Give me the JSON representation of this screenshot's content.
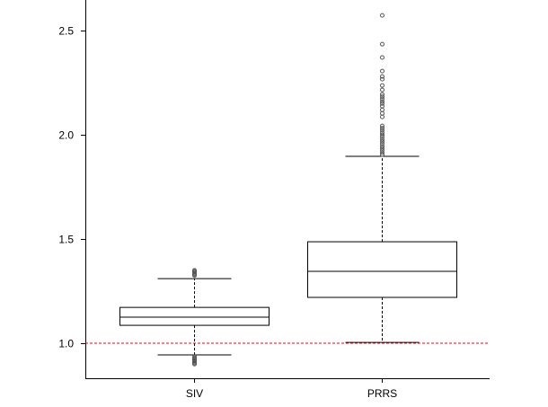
{
  "chart_data": {
    "type": "box",
    "title": "",
    "xlabel": "",
    "ylabel": "",
    "ylim": [
      0.832,
      2.647
    ],
    "yticks": [
      1.0,
      1.5,
      2.0,
      2.5
    ],
    "ytick_labels": [
      "1.0",
      "1.5",
      "2.0",
      "2.5"
    ],
    "reference_line": {
      "y": 1.0,
      "color": "#ff0000",
      "style": "dashed"
    },
    "categories": [
      "SIV",
      "PRRS"
    ],
    "boxes": [
      {
        "name": "SIV",
        "whisker_low": 0.944,
        "q1": 1.086,
        "median": 1.125,
        "q3": 1.172,
        "whisker_high": 1.31,
        "outliers": [
          0.9,
          0.905,
          0.91,
          0.915,
          0.92,
          0.925,
          0.93,
          0.935,
          1.325,
          1.33,
          1.335,
          1.34,
          1.345,
          1.35
        ]
      },
      {
        "name": "PRRS",
        "whisker_low": 1.004,
        "q1": 1.22,
        "median": 1.345,
        "q3": 1.487,
        "whisker_high": 1.897,
        "outliers": [
          1.905,
          1.914,
          1.925,
          1.935,
          1.945,
          1.957,
          1.968,
          1.978,
          1.99,
          2.0,
          2.01,
          2.022,
          2.032,
          2.043,
          2.086,
          2.103,
          2.12,
          2.138,
          2.15,
          2.16,
          2.172,
          2.183,
          2.194,
          2.216,
          2.237,
          2.267,
          2.28,
          2.306,
          2.371,
          2.435,
          2.573
        ]
      }
    ]
  }
}
